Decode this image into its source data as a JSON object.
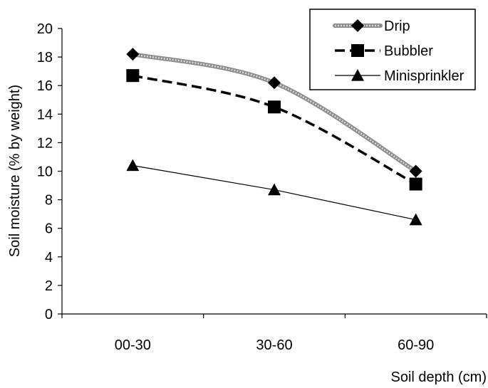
{
  "chart_data": {
    "type": "line",
    "categories": [
      "00-30",
      "30-60",
      "60-90"
    ],
    "series": [
      {
        "name": "Drip",
        "values": [
          18.2,
          16.2,
          10.0
        ],
        "color": "#a6a6a6",
        "marker": "diamond",
        "style": "thick-gray"
      },
      {
        "name": "Bubbler",
        "values": [
          16.7,
          14.5,
          9.1
        ],
        "color": "#000000",
        "marker": "square",
        "style": "dashed"
      },
      {
        "name": "Minisprinkler",
        "values": [
          10.4,
          8.7,
          6.6
        ],
        "color": "#000000",
        "marker": "triangle",
        "style": "thin"
      }
    ],
    "ylim": [
      0,
      20
    ],
    "yticks": [
      0,
      2,
      4,
      6,
      8,
      10,
      12,
      14,
      16,
      18,
      20
    ],
    "xlabel": "Soil depth (cm)",
    "ylabel": "Soil moisture (% by weight)",
    "legend_position": "top-right",
    "grid": false
  }
}
